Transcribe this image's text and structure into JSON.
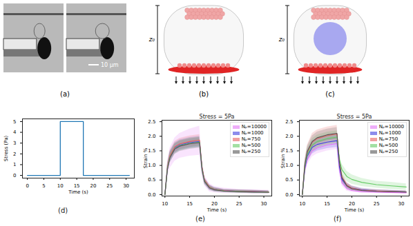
{
  "figure": {
    "panel_labels": [
      "(a)",
      "(b)",
      "(c)",
      "(d)",
      "(e)",
      "(f)"
    ],
    "scale_bar": "10 μm",
    "height_label": "z₀"
  },
  "chart_data": [
    {
      "type": "line",
      "x": [
        0,
        10,
        10,
        17,
        17,
        31
      ],
      "values": [
        0,
        0,
        5,
        5,
        0,
        0
      ],
      "color": "#1f77b4",
      "xlabel": "Time (s)",
      "ylabel": "Stress (Pa)",
      "xlim": [
        -1.5,
        32.5
      ],
      "ylim": [
        -0.25,
        5.25
      ],
      "xticks": [
        0,
        5,
        10,
        15,
        20,
        25,
        30
      ],
      "yticks": [
        0,
        1,
        2,
        3,
        4,
        5
      ]
    },
    {
      "type": "line",
      "title": "Stress = 5Pa",
      "xlabel": "Time (s)",
      "ylabel": "Strain %",
      "x": [
        10,
        10.5,
        11,
        12,
        13,
        15,
        17,
        17.5,
        18,
        19,
        20,
        22,
        25,
        28,
        31
      ],
      "series": [
        {
          "name": "Nₚ=10000",
          "color": "#e377f5",
          "values": [
            0,
            0.85,
            1.25,
            1.55,
            1.65,
            1.75,
            1.8,
            0.9,
            0.45,
            0.22,
            0.16,
            0.12,
            0.1,
            0.09,
            0.08
          ],
          "lower": [
            0,
            0.6,
            0.9,
            1.15,
            1.25,
            1.32,
            1.35,
            0.65,
            0.3,
            0.1,
            0.06,
            0.04,
            0.03,
            0.02,
            0.02
          ],
          "upper": [
            0,
            1.1,
            1.6,
            1.95,
            2.1,
            2.25,
            2.35,
            1.2,
            0.65,
            0.38,
            0.28,
            0.22,
            0.18,
            0.16,
            0.15
          ]
        },
        {
          "name": "Nₚ=1000",
          "color": "#4040e0",
          "values": [
            0,
            0.9,
            1.3,
            1.6,
            1.7,
            1.78,
            1.82,
            0.92,
            0.48,
            0.25,
            0.18,
            0.13,
            0.11,
            0.1,
            0.09
          ],
          "lower": [
            0,
            0.75,
            1.12,
            1.42,
            1.52,
            1.6,
            1.64,
            0.78,
            0.38,
            0.17,
            0.11,
            0.08,
            0.06,
            0.05,
            0.05
          ],
          "upper": [
            0,
            1.05,
            1.48,
            1.78,
            1.88,
            1.96,
            2.0,
            1.06,
            0.58,
            0.33,
            0.25,
            0.18,
            0.16,
            0.15,
            0.13
          ]
        },
        {
          "name": "Nₚ=750",
          "color": "#e86060",
          "values": [
            0,
            0.92,
            1.33,
            1.64,
            1.74,
            1.82,
            1.87,
            0.95,
            0.5,
            0.26,
            0.18,
            0.13,
            0.11,
            0.1,
            0.09
          ],
          "lower": [
            0,
            0.77,
            1.15,
            1.45,
            1.55,
            1.63,
            1.68,
            0.8,
            0.4,
            0.18,
            0.12,
            0.08,
            0.06,
            0.05,
            0.05
          ],
          "upper": [
            0,
            1.07,
            1.51,
            1.83,
            1.93,
            2.01,
            2.06,
            1.1,
            0.6,
            0.34,
            0.24,
            0.18,
            0.16,
            0.15,
            0.13
          ]
        },
        {
          "name": "Nₚ=500",
          "color": "#66cc66",
          "values": [
            0,
            0.88,
            1.28,
            1.58,
            1.68,
            1.76,
            1.8,
            0.9,
            0.46,
            0.24,
            0.17,
            0.12,
            0.1,
            0.09,
            0.08
          ],
          "lower": [
            0,
            0.74,
            1.1,
            1.4,
            1.5,
            1.58,
            1.62,
            0.76,
            0.36,
            0.16,
            0.1,
            0.07,
            0.05,
            0.04,
            0.04
          ],
          "upper": [
            0,
            1.02,
            1.46,
            1.76,
            1.86,
            1.94,
            1.98,
            1.04,
            0.56,
            0.32,
            0.24,
            0.17,
            0.15,
            0.14,
            0.12
          ]
        },
        {
          "name": "Nₚ=250",
          "color": "#555555",
          "values": [
            0,
            0.86,
            1.26,
            1.56,
            1.66,
            1.74,
            1.78,
            0.88,
            0.45,
            0.23,
            0.16,
            0.12,
            0.1,
            0.09,
            0.08
          ],
          "lower": [
            0,
            0.72,
            1.08,
            1.38,
            1.48,
            1.56,
            1.6,
            0.74,
            0.35,
            0.15,
            0.1,
            0.07,
            0.05,
            0.04,
            0.04
          ],
          "upper": [
            0,
            1.0,
            1.44,
            1.74,
            1.84,
            1.92,
            1.96,
            1.02,
            0.55,
            0.31,
            0.22,
            0.17,
            0.15,
            0.14,
            0.12
          ]
        }
      ],
      "xlim": [
        9.4,
        31.6
      ],
      "ylim": [
        -0.05,
        2.55
      ],
      "xticks": [
        10,
        15,
        20,
        25,
        30
      ],
      "yticks": [
        {
          "value": 0,
          "label": "0.0"
        },
        {
          "value": 0.5,
          "label": "0.5"
        },
        {
          "value": 1,
          "label": "1.0"
        },
        {
          "value": 1.5,
          "label": "1.5"
        },
        {
          "value": 2,
          "label": "2.0"
        },
        {
          "value": 2.5,
          "label": "2.5"
        }
      ],
      "legend": "upper right"
    },
    {
      "type": "line",
      "title": "Stress = 5Pa",
      "xlabel": "Time (s)",
      "ylabel": "Strain %",
      "x": [
        10,
        10.5,
        11,
        12,
        13,
        15,
        17,
        17.5,
        18,
        19,
        20,
        22,
        25,
        28,
        31
      ],
      "series": [
        {
          "name": "Nₚ=10000",
          "color": "#e377f5",
          "values": [
            0,
            0.82,
            1.2,
            1.5,
            1.6,
            1.7,
            1.75,
            0.85,
            0.4,
            0.2,
            0.14,
            0.1,
            0.08,
            0.07,
            0.06
          ],
          "lower": [
            0,
            0.68,
            1.02,
            1.3,
            1.4,
            1.5,
            1.55,
            0.7,
            0.3,
            0.12,
            0.08,
            0.05,
            0.04,
            0.03,
            0.03
          ],
          "upper": [
            0,
            0.96,
            1.38,
            1.7,
            1.8,
            1.9,
            1.95,
            1.0,
            0.5,
            0.28,
            0.2,
            0.15,
            0.12,
            0.11,
            0.1
          ]
        },
        {
          "name": "Nₚ=1000",
          "color": "#4040e0",
          "values": [
            0,
            0.9,
            1.32,
            1.62,
            1.72,
            1.8,
            1.85,
            0.95,
            0.52,
            0.3,
            0.22,
            0.16,
            0.12,
            0.1,
            0.09
          ],
          "lower": [
            0,
            0.74,
            1.12,
            1.4,
            1.5,
            1.58,
            1.62,
            0.78,
            0.4,
            0.2,
            0.14,
            0.1,
            0.07,
            0.06,
            0.05
          ],
          "upper": [
            0,
            1.06,
            1.52,
            1.84,
            1.94,
            2.02,
            2.08,
            1.12,
            0.64,
            0.4,
            0.3,
            0.22,
            0.17,
            0.15,
            0.13
          ]
        },
        {
          "name": "Nₚ=750",
          "color": "#e86060",
          "values": [
            0,
            1.0,
            1.45,
            1.8,
            1.92,
            2.02,
            2.08,
            1.1,
            0.6,
            0.32,
            0.22,
            0.15,
            0.12,
            0.1,
            0.09
          ],
          "lower": [
            0,
            0.8,
            1.2,
            1.5,
            1.62,
            1.72,
            1.78,
            0.88,
            0.45,
            0.22,
            0.14,
            0.1,
            0.07,
            0.06,
            0.05
          ],
          "upper": [
            0,
            1.2,
            1.7,
            2.1,
            2.22,
            2.32,
            2.38,
            1.32,
            0.75,
            0.42,
            0.3,
            0.2,
            0.17,
            0.14,
            0.13
          ]
        },
        {
          "name": "Nₚ=500",
          "color": "#66cc66",
          "values": [
            0,
            0.95,
            1.38,
            1.7,
            1.82,
            1.92,
            1.97,
            1.2,
            0.85,
            0.62,
            0.52,
            0.42,
            0.34,
            0.3,
            0.26
          ],
          "lower": [
            0,
            0.8,
            1.18,
            1.48,
            1.6,
            1.7,
            1.75,
            1.0,
            0.65,
            0.45,
            0.36,
            0.28,
            0.22,
            0.18,
            0.15
          ],
          "upper": [
            0,
            1.1,
            1.58,
            1.92,
            2.04,
            2.14,
            2.19,
            1.4,
            1.05,
            0.8,
            0.68,
            0.56,
            0.46,
            0.42,
            0.37
          ]
        },
        {
          "name": "Nₚ=250",
          "color": "#555555",
          "values": [
            0,
            1.02,
            1.48,
            1.82,
            1.95,
            2.05,
            2.1,
            1.1,
            0.58,
            0.3,
            0.2,
            0.14,
            0.11,
            0.1,
            0.09
          ],
          "lower": [
            0,
            0.88,
            1.3,
            1.62,
            1.75,
            1.85,
            1.9,
            0.94,
            0.46,
            0.22,
            0.14,
            0.1,
            0.07,
            0.06,
            0.05
          ],
          "upper": [
            0,
            1.16,
            1.66,
            2.02,
            2.15,
            2.25,
            2.3,
            1.26,
            0.7,
            0.38,
            0.28,
            0.19,
            0.16,
            0.14,
            0.13
          ]
        }
      ],
      "xlim": [
        9.4,
        31.6
      ],
      "ylim": [
        -0.05,
        2.55
      ],
      "xticks": [
        10,
        15,
        20,
        25,
        30
      ],
      "yticks": [
        {
          "value": 0,
          "label": "0.0"
        },
        {
          "value": 0.5,
          "label": "0.5"
        },
        {
          "value": 1,
          "label": "1.0"
        },
        {
          "value": 1.5,
          "label": "1.5"
        },
        {
          "value": 2,
          "label": "2.0"
        },
        {
          "value": 2.5,
          "label": "2.5"
        }
      ],
      "legend": "upper right"
    }
  ]
}
